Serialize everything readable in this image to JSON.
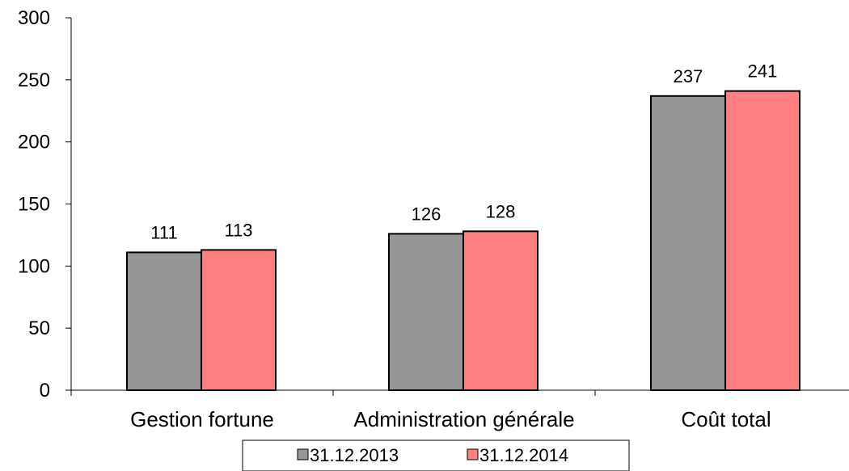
{
  "chart_data": {
    "type": "bar",
    "categories": [
      "Gestion fortune",
      "Administration générale",
      "Coût total"
    ],
    "series": [
      {
        "name": "31.12.2013",
        "values": [
          111,
          126,
          237
        ],
        "color": "#969696"
      },
      {
        "name": "31.12.2014",
        "values": [
          113,
          128,
          241
        ],
        "color": "#FF8080"
      }
    ],
    "data_labels": true,
    "ylim": [
      0,
      300
    ],
    "yticks": [
      0,
      50,
      100,
      150,
      200,
      250,
      300
    ],
    "grid": false,
    "legend_position": "bottom",
    "title": "",
    "xlabel": "",
    "ylabel": ""
  }
}
